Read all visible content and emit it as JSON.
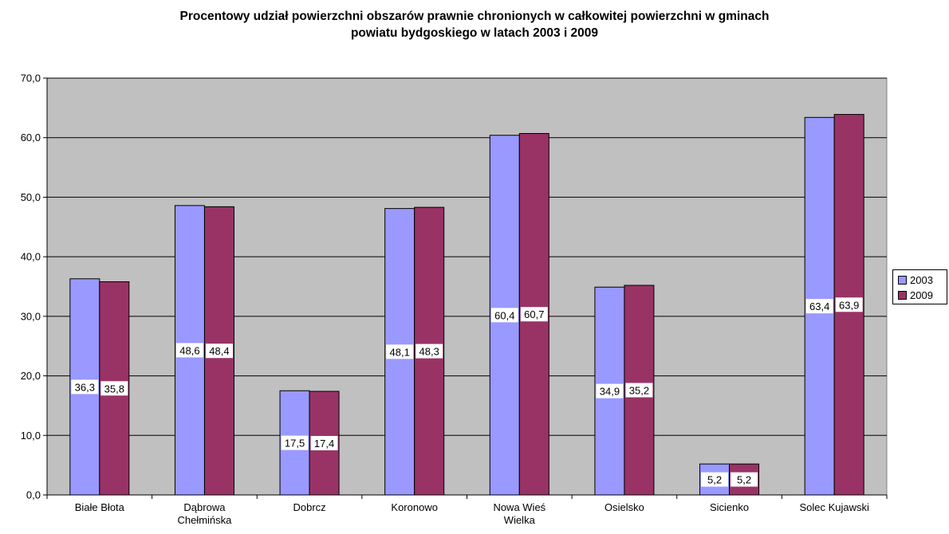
{
  "chart_data": {
    "type": "bar",
    "title_lines": [
      "Procentowy udział powierzchni obszarów prawnie chronionych w całkowitej powierzchni w gminach",
      "powiatu bydgoskiego w latach 2003 i 2009"
    ],
    "categories": [
      [
        "Białe Błota"
      ],
      [
        "Dąbrowa",
        "Chełmińska"
      ],
      [
        "Dobrcz"
      ],
      [
        "Koronowo"
      ],
      [
        "Nowa Wieś",
        "Wielka"
      ],
      [
        "Osielsko"
      ],
      [
        "Sicienko"
      ],
      [
        "Solec Kujawski"
      ]
    ],
    "series": [
      {
        "name": "2003",
        "color": "#9999ff",
        "values": [
          36.3,
          48.6,
          17.5,
          48.1,
          60.4,
          34.9,
          5.2,
          63.4
        ],
        "labels": [
          "36,3",
          "48,6",
          "17,5",
          "48,1",
          "60,4",
          "34,9",
          "5,2",
          "63,4"
        ]
      },
      {
        "name": "2009",
        "color": "#993366",
        "values": [
          35.8,
          48.4,
          17.4,
          48.3,
          60.7,
          35.2,
          5.2,
          63.9
        ],
        "labels": [
          "35,8",
          "48,4",
          "17,4",
          "48,3",
          "60,7",
          "35,2",
          "5,2",
          "63,9"
        ]
      }
    ],
    "ylim": [
      0,
      70
    ],
    "yticks": [
      0,
      10,
      20,
      30,
      40,
      50,
      60,
      70
    ],
    "ytick_labels": [
      "0,0",
      "10,0",
      "20,0",
      "30,0",
      "40,0",
      "50,0",
      "60,0",
      "70,0"
    ],
    "grid": true,
    "plot_background": "#c0c0c0",
    "legend": "right"
  }
}
